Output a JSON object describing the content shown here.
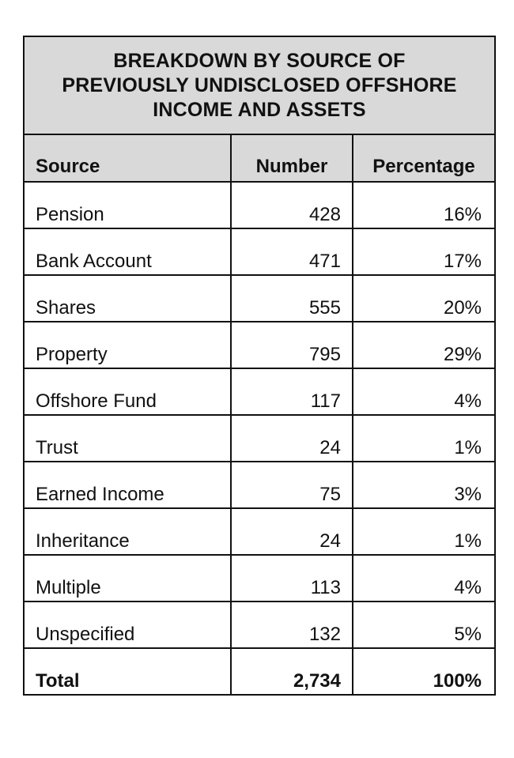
{
  "chart_data": {
    "type": "table",
    "title": "BREAKDOWN BY SOURCE OF PREVIOUSLY UNDISCLOSED OFFSHORE INCOME AND ASSETS",
    "title_lines": [
      "BREAKDOWN BY SOURCE OF",
      "PREVIOUSLY UNDISCLOSED OFFSHORE",
      "INCOME AND ASSETS"
    ],
    "columns": [
      "Source",
      "Number",
      "Percentage"
    ],
    "rows": [
      {
        "source": "Pension",
        "number": "428",
        "percentage": "16%"
      },
      {
        "source": "Bank Account",
        "number": "471",
        "percentage": "17%"
      },
      {
        "source": "Shares",
        "number": "555",
        "percentage": "20%"
      },
      {
        "source": "Property",
        "number": "795",
        "percentage": "29%"
      },
      {
        "source": "Offshore Fund",
        "number": "117",
        "percentage": "4%"
      },
      {
        "source": "Trust",
        "number": "24",
        "percentage": "1%"
      },
      {
        "source": "Earned Income",
        "number": "75",
        "percentage": "3%"
      },
      {
        "source": "Inheritance",
        "number": "24",
        "percentage": "1%"
      },
      {
        "source": "Multiple",
        "number": "113",
        "percentage": "4%"
      },
      {
        "source": "Unspecified",
        "number": "132",
        "percentage": "5%"
      }
    ],
    "total": {
      "source": "Total",
      "number": "2,734",
      "percentage": "100%"
    },
    "colors": {
      "header_background": "#d9d9d9",
      "border": "#111111",
      "text": "#111111"
    }
  }
}
